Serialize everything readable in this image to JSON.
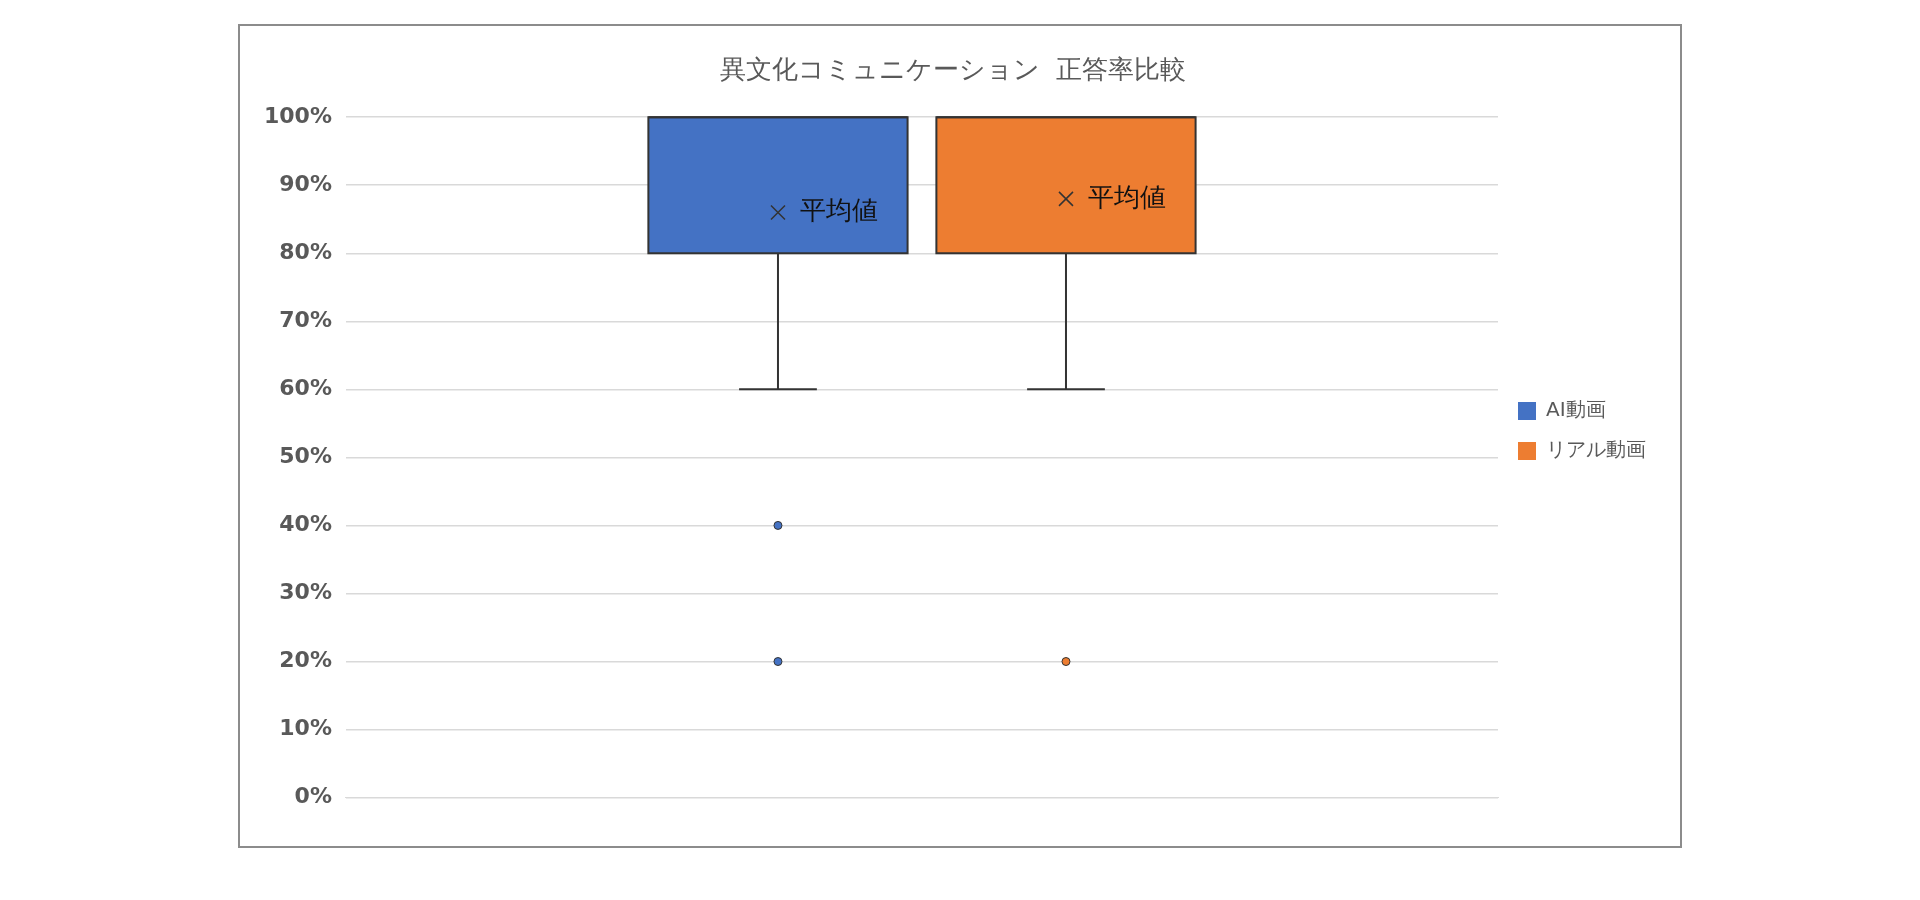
{
  "chart_data": {
    "type": "box",
    "title": "異文化コミュニケーション  正答率比較",
    "categories": [
      null
    ],
    "series": [
      {
        "name": "AI動画",
        "color": "#4472c4",
        "boxes": [
          {
            "low": 60,
            "q1": 80,
            "median": 100,
            "q3": 100,
            "high": 100,
            "mean": 86,
            "outliers": [
              40,
              20
            ]
          }
        ]
      },
      {
        "name": "リアル動画",
        "color": "#ed7d31",
        "boxes": [
          {
            "low": 60,
            "q1": 80,
            "median": 100,
            "q3": 100,
            "high": 100,
            "mean": 88,
            "outliers": [
              20
            ]
          }
        ]
      }
    ],
    "ylim": [
      0,
      100
    ],
    "yticks": [
      {
        "value": 0,
        "label": "0%"
      },
      {
        "value": 10,
        "label": "10%"
      },
      {
        "value": 20,
        "label": "20%"
      },
      {
        "value": 30,
        "label": "30%"
      },
      {
        "value": 40,
        "label": "40%"
      },
      {
        "value": 50,
        "label": "50%"
      },
      {
        "value": 60,
        "label": "60%"
      },
      {
        "value": 70,
        "label": "70%"
      },
      {
        "value": 80,
        "label": "80%"
      },
      {
        "value": 90,
        "label": "90%"
      },
      {
        "value": 100,
        "label": "100%"
      }
    ],
    "annotations": [
      "平均値",
      "平均値"
    ],
    "grid": "y",
    "legend": "right",
    "marker": "cross"
  }
}
